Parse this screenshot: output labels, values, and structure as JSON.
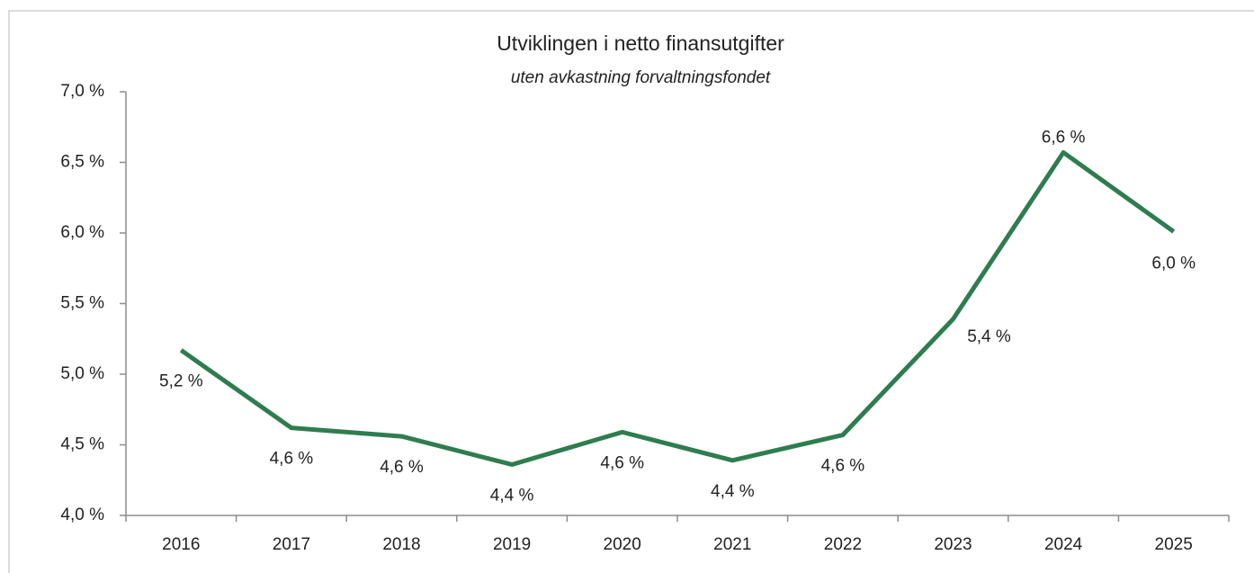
{
  "chart_data": {
    "type": "line",
    "title": "Utviklingen i netto finansutgifter",
    "subtitle": "uten avkastning forvaltningsfondet",
    "categories": [
      "2016",
      "2017",
      "2018",
      "2019",
      "2020",
      "2021",
      "2022",
      "2023",
      "2024",
      "2025"
    ],
    "series": [
      {
        "name": "Netto finansutgifter",
        "color": "#2e7d4f",
        "values": [
          5.17,
          4.62,
          4.56,
          4.36,
          4.59,
          4.39,
          4.57,
          5.39,
          6.57,
          6.01
        ],
        "value_labels": [
          "5,2 %",
          "4,6 %",
          "4,6 %",
          "4,4 %",
          "4,6 %",
          "4,4 %",
          "4,6 %",
          "5,4 %",
          "6,6 %",
          "6,0 %"
        ]
      }
    ],
    "ylim": [
      4.0,
      7.0
    ],
    "yticks": [
      {
        "value": 4.0,
        "label": "4,0 %"
      },
      {
        "value": 4.5,
        "label": "4,5 %"
      },
      {
        "value": 5.0,
        "label": "5,0 %"
      },
      {
        "value": 5.5,
        "label": "5,5 %"
      },
      {
        "value": 6.0,
        "label": "6,0 %"
      },
      {
        "value": 6.5,
        "label": "6,5 %"
      },
      {
        "value": 7.0,
        "label": "7,0 %"
      }
    ],
    "grid": false
  }
}
